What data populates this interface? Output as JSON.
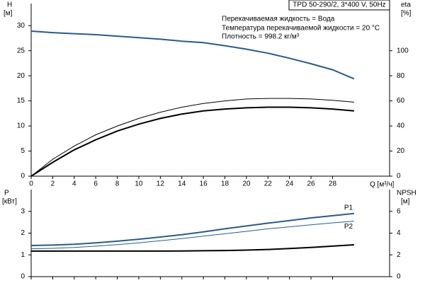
{
  "chart_data": [
    {
      "type": "line",
      "model": "TPD 50-290/2, 3*400 V, 50Hz",
      "annotations": [
        "Перекачиваемая жидкость = Вода",
        "Температура перекачиваемой жидкости = 20 °C",
        "Плотность = 998.2 кг/м³"
      ],
      "x_label": "Q [м³/ч]",
      "y_label": [
        "H",
        "[м]"
      ],
      "y2_label": [
        "eta",
        "[%]"
      ],
      "x": [
        0,
        2,
        4,
        6,
        8,
        10,
        12,
        14,
        16,
        18,
        20,
        22,
        24,
        26,
        28,
        30
      ],
      "xlim": [
        0,
        33.3
      ],
      "xticks": [
        0,
        2,
        4,
        6,
        8,
        10,
        12,
        14,
        16,
        18,
        20,
        22,
        24,
        26,
        28
      ],
      "ylim": [
        0,
        34.4
      ],
      "yticks": [
        0,
        5,
        10,
        15,
        20,
        25,
        30
      ],
      "y2lim": [
        0,
        137.6
      ],
      "y2ticks": [
        0,
        20,
        40,
        60,
        80,
        100
      ],
      "series": [
        {
          "color": "#2b5a8c",
          "width": 2,
          "axis": "y",
          "values": [
            28.9,
            28.6,
            28.4,
            28.2,
            27.9,
            27.6,
            27.3,
            26.9,
            26.6,
            26.0,
            25.3,
            24.5,
            23.5,
            22.4,
            21.2,
            19.4
          ]
        },
        {
          "color": "#000000",
          "width": 1,
          "axis": "y2",
          "values": [
            0,
            13.5,
            24,
            33,
            40,
            46,
            51,
            55,
            58,
            60,
            61.5,
            62,
            62,
            61.5,
            60.5,
            59
          ]
        },
        {
          "color": "#000000",
          "width": 2,
          "axis": "y2",
          "values": [
            0,
            11,
            21,
            29,
            36,
            41.5,
            46,
            49.5,
            52,
            53.5,
            54.5,
            55,
            55,
            54.5,
            53.5,
            52
          ]
        }
      ]
    },
    {
      "type": "line",
      "y_label": [
        "P",
        "[кВт]"
      ],
      "y2_label": [
        "NPSH",
        "[м]"
      ],
      "x": [
        0,
        2,
        4,
        6,
        8,
        10,
        12,
        14,
        16,
        18,
        20,
        22,
        24,
        26,
        28,
        30
      ],
      "xlim": [
        0,
        33.3
      ],
      "xticks": [
        0,
        2,
        4,
        6,
        8,
        10,
        12,
        14,
        16,
        18,
        20,
        22,
        24,
        26,
        28
      ],
      "ylim": [
        0,
        4
      ],
      "yticks": [
        0,
        1,
        2,
        3
      ],
      "y2lim": [
        0,
        8
      ],
      "y2ticks": [
        0,
        2,
        4,
        6
      ],
      "series": [
        {
          "name": "P1",
          "color": "#2b5a8c",
          "width": 2,
          "axis": "y",
          "values": [
            1.43,
            1.45,
            1.49,
            1.55,
            1.63,
            1.72,
            1.82,
            1.93,
            2.06,
            2.2,
            2.33,
            2.46,
            2.58,
            2.7,
            2.8,
            2.9
          ]
        },
        {
          "name": "P2",
          "color": "#2b5a8c",
          "width": 1,
          "axis": "y",
          "values": [
            1.28,
            1.3,
            1.34,
            1.4,
            1.47,
            1.55,
            1.65,
            1.75,
            1.86,
            1.97,
            2.08,
            2.2,
            2.29,
            2.38,
            2.47,
            2.55
          ]
        },
        {
          "color": "#000000",
          "width": 2,
          "axis": "y2",
          "values": [
            2.35,
            2.35,
            2.35,
            2.35,
            2.35,
            2.35,
            2.35,
            2.36,
            2.38,
            2.4,
            2.44,
            2.5,
            2.58,
            2.68,
            2.8,
            2.93
          ]
        }
      ]
    }
  ]
}
